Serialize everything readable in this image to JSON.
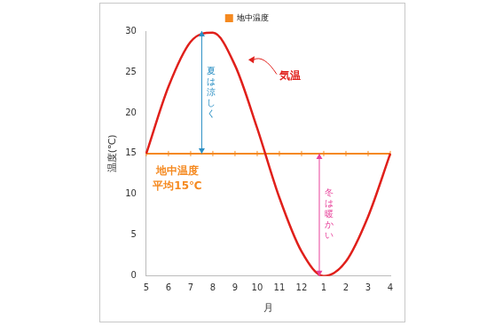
{
  "chart_data": {
    "type": "line",
    "x_label": "月",
    "y_label": "温度(℃)",
    "categories": [
      "5",
      "6",
      "7",
      "8",
      "9",
      "10",
      "11",
      "12",
      "1",
      "2",
      "3",
      "4"
    ],
    "ylim": [
      0,
      30
    ],
    "yticks": [
      0,
      5,
      10,
      15,
      20,
      25,
      30
    ],
    "grid": false,
    "legend": "top",
    "series": [
      {
        "color": "#e0201b",
        "marker": "none",
        "values": [
          15,
          23.2,
          28.7,
          29.8,
          25.8,
          18.1,
          9.6,
          3.0,
          0.0,
          1.8,
          7.3,
          15
        ]
      },
      {
        "name": "地中温度",
        "color": "#f5891f",
        "marker": "tick",
        "values": [
          15,
          15,
          15,
          15,
          15,
          15,
          15,
          15,
          15,
          15,
          15,
          15
        ]
      }
    ],
    "annotations": [
      {
        "text": "気温",
        "color": "#e0201b"
      },
      {
        "lines": [
          "地中温度",
          "平均15℃"
        ],
        "color": "#f5891f"
      },
      {
        "text": "夏は涼しく",
        "color": "#2a8fc4",
        "range": [
          15,
          30
        ]
      },
      {
        "text": "冬は暖かい",
        "color": "#e8409a",
        "range": [
          0,
          15
        ]
      }
    ]
  }
}
